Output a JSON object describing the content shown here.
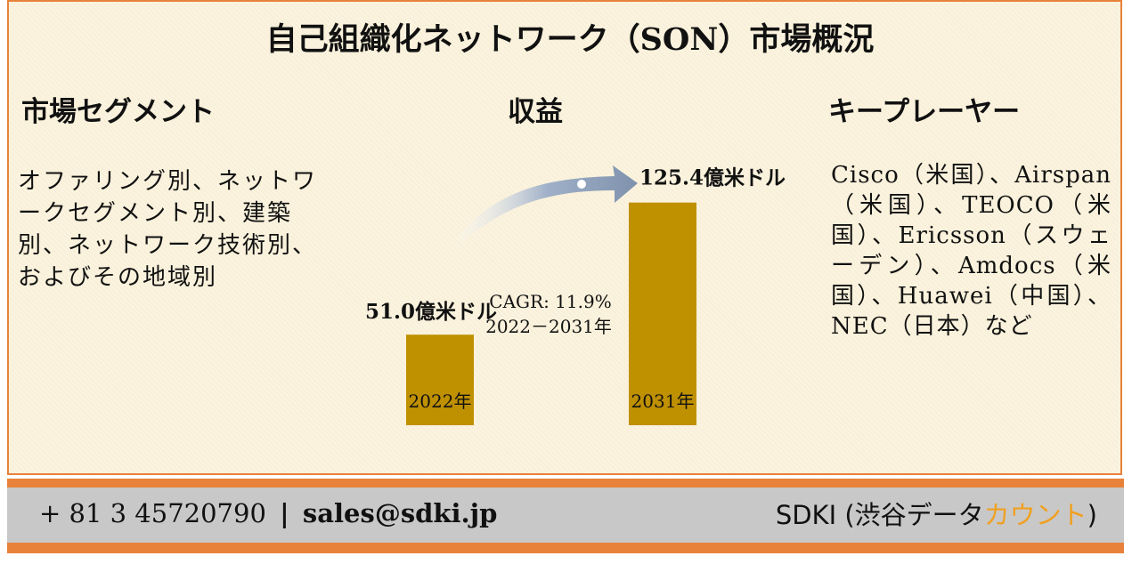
{
  "title": "自己組織化ネットワーク（SON）市場概況",
  "headings": {
    "segment": "市場セグメント",
    "revenue": "収益",
    "key_players": "キープレーヤー"
  },
  "segment_text": "オファリング別、ネットワークセグメント別、建築別、ネットワーク技術別、およびその地域別",
  "key_players_text": "Cisco（米国）、Airspan（米国）、TEOCO（米国）、Ericsson（スウェーデン）、Amdocs（米国）、Huawei（中国）、NEC（日本）など",
  "chart_data": {
    "type": "bar",
    "categories": [
      "2022年",
      "2031年"
    ],
    "values": [
      51.0,
      125.4
    ],
    "value_labels": [
      "51.0億米ドル",
      "125.4億米ドル"
    ],
    "annotation": [
      "CAGR: 11.9%",
      "2022－2031年"
    ],
    "bar_color": "#bf9000",
    "arrow_color": "#8096b4"
  },
  "footer": {
    "phone": "+ 81 3 45720790",
    "separator": "|",
    "email": "sales@sdki.jp",
    "brand_prefix": "SDKI (渋谷データ",
    "brand_accent": "カウント",
    "brand_suffix": ")"
  },
  "colors": {
    "border": "#e8823a",
    "footer_bg": "#c8c8c8",
    "accent": "#f0a020"
  }
}
